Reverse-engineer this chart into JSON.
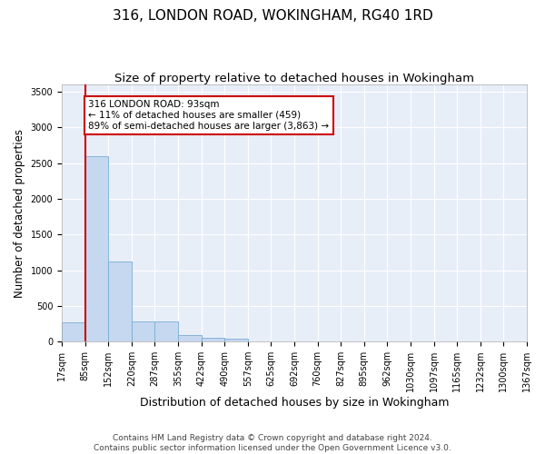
{
  "title": "316, LONDON ROAD, WOKINGHAM, RG40 1RD",
  "subtitle": "Size of property relative to detached houses in Wokingham",
  "xlabel": "Distribution of detached houses by size in Wokingham",
  "ylabel": "Number of detached properties",
  "bar_color": "#c5d8ef",
  "bar_edge_color": "#7aadd4",
  "background_color": "#e8eef8",
  "grid_color": "#ffffff",
  "bin_labels": [
    "17sqm",
    "85sqm",
    "152sqm",
    "220sqm",
    "287sqm",
    "355sqm",
    "422sqm",
    "490sqm",
    "557sqm",
    "625sqm",
    "692sqm",
    "760sqm",
    "827sqm",
    "895sqm",
    "962sqm",
    "1030sqm",
    "1097sqm",
    "1165sqm",
    "1232sqm",
    "1300sqm",
    "1367sqm"
  ],
  "bar_values": [
    270,
    2600,
    1120,
    280,
    280,
    95,
    50,
    35,
    5,
    3,
    2,
    2,
    1,
    1,
    0,
    0,
    0,
    0,
    0,
    0
  ],
  "vline_x_bin_index": 1,
  "vline_color": "#cc0000",
  "annotation_text": "316 LONDON ROAD: 93sqm\n← 11% of detached houses are smaller (459)\n89% of semi-detached houses are larger (3,863) →",
  "annotation_box_edgecolor": "#cc0000",
  "ylim": [
    0,
    3600
  ],
  "yticks": [
    0,
    500,
    1000,
    1500,
    2000,
    2500,
    3000,
    3500
  ],
  "footer_text": "Contains HM Land Registry data © Crown copyright and database right 2024.\nContains public sector information licensed under the Open Government Licence v3.0.",
  "title_fontsize": 11,
  "subtitle_fontsize": 9.5,
  "tick_fontsize": 7,
  "ylabel_fontsize": 8.5,
  "xlabel_fontsize": 9
}
